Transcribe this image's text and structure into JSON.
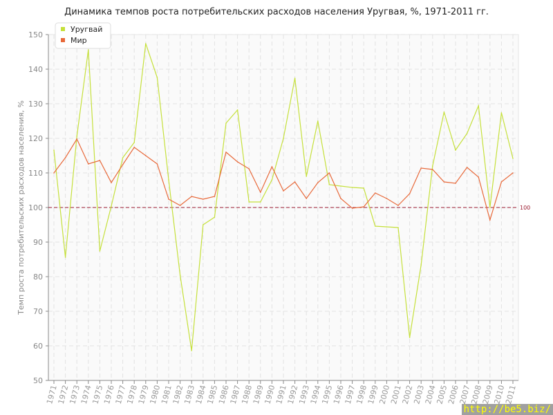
{
  "chart_data": {
    "type": "line",
    "title": "Динамика темпов роста потребительских расходов населения Уругвая, %, 1971-2011 гг.",
    "xlabel": "",
    "ylabel": "Темп роста потребительских расходов населения, %",
    "ylim": [
      50,
      150
    ],
    "yticks": [
      50,
      60,
      70,
      80,
      90,
      100,
      110,
      120,
      130,
      140,
      150
    ],
    "grid": true,
    "legend_position": "top-left",
    "x": [
      1971,
      1972,
      1973,
      1974,
      1975,
      1976,
      1977,
      1978,
      1979,
      1980,
      1981,
      1982,
      1983,
      1984,
      1985,
      1986,
      1987,
      1988,
      1989,
      1990,
      1991,
      1992,
      1993,
      1994,
      1995,
      1996,
      1997,
      1998,
      1999,
      2000,
      2001,
      2002,
      2003,
      2004,
      2005,
      2006,
      2007,
      2008,
      2009,
      2010,
      2011
    ],
    "series": [
      {
        "name": "Уругвай",
        "color": "#c5e03a",
        "values": [
          116.6,
          85.6,
          120.6,
          145.6,
          87.4,
          100.4,
          114.4,
          118.8,
          147.4,
          137.6,
          108,
          80.4,
          58.6,
          95,
          97.2,
          124.4,
          128.2,
          101.6,
          101.6,
          108,
          120,
          137.4,
          109,
          125,
          106.6,
          106.2,
          105.8,
          105.6,
          94.6,
          94.4,
          94.2,
          62.4,
          83.4,
          112,
          127.6,
          116.6,
          121.4,
          129.4,
          100,
          127.4,
          114.2
        ]
      },
      {
        "name": "Мир",
        "color": "#e8693a",
        "values": [
          110,
          114.4,
          119.8,
          112.6,
          113.6,
          107.2,
          112.4,
          117.4,
          115,
          112.6,
          102.4,
          100.6,
          103.2,
          102.4,
          103.2,
          116,
          113.2,
          111.2,
          104.4,
          111.8,
          104.8,
          107.4,
          102.6,
          107.2,
          110,
          102.6,
          99.8,
          100.2,
          104.2,
          102.6,
          100.6,
          104,
          111.4,
          111,
          107.4,
          107,
          111.6,
          108.8,
          96.4,
          107.4,
          110
        ]
      }
    ],
    "reference_line": {
      "value": 100,
      "label": "100",
      "color": "#9b1b30"
    }
  },
  "watermark": "http://be5.biz/"
}
